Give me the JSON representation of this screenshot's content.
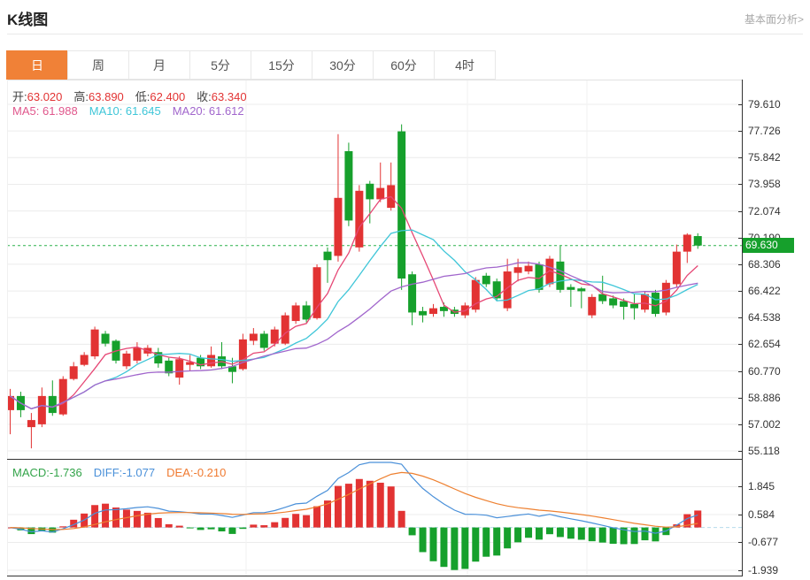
{
  "header": {
    "title": "K线图",
    "link": "基本面分析>"
  },
  "tabs": [
    {
      "label": "日",
      "name": "tab-day",
      "active": true
    },
    {
      "label": "周",
      "name": "tab-week",
      "active": false
    },
    {
      "label": "月",
      "name": "tab-month",
      "active": false
    },
    {
      "label": "5分",
      "name": "tab-5min",
      "active": false
    },
    {
      "label": "15分",
      "name": "tab-15min",
      "active": false
    },
    {
      "label": "30分",
      "name": "tab-30min",
      "active": false
    },
    {
      "label": "60分",
      "name": "tab-60min",
      "active": false
    },
    {
      "label": "4时",
      "name": "tab-4hour",
      "active": false
    }
  ],
  "ohlc_bar": {
    "items": [
      {
        "name": "ohlc-open",
        "label": "开:",
        "value": "63.020"
      },
      {
        "name": "ohlc-high",
        "label": "高:",
        "value": "63.890"
      },
      {
        "name": "ohlc-low",
        "label": "低:",
        "value": "62.400"
      },
      {
        "name": "ohlc-close",
        "label": "收:",
        "value": "63.340"
      }
    ]
  },
  "ma_bar": {
    "items": [
      {
        "name": "ma5-value",
        "label": "MA5: ",
        "value": "61.988",
        "color": "#e0578c"
      },
      {
        "name": "ma10-value",
        "label": "MA10: ",
        "value": "61.645",
        "color": "#3fc6d8"
      },
      {
        "name": "ma20-value",
        "label": "MA20: ",
        "value": "61.612",
        "color": "#a166cc"
      }
    ]
  },
  "macd_bar": {
    "items": [
      {
        "name": "macd-value",
        "label": "MACD:",
        "value": "-1.736",
        "color": "#33a44a"
      },
      {
        "name": "diff-value",
        "label": "DIFF:",
        "value": "-1.077",
        "color": "#4a90d9"
      },
      {
        "name": "dea-value",
        "label": "DEA:",
        "value": "-0.210",
        "color": "#f07a30"
      }
    ]
  },
  "price_badge": {
    "value": "69.630",
    "price": 69.63
  },
  "colors": {
    "up": "#e23333",
    "down": "#16a02c",
    "accent_tab": "#f08137",
    "ma5": "#e64775",
    "ma10": "#3fc6d8",
    "ma20": "#a166cc",
    "diff_line": "#4a90d9",
    "dea_line": "#ee8030",
    "price_line": "#2bb24c",
    "badge_bg": "#16a02c",
    "grid": "#ececec"
  },
  "chart_data": {
    "type": "candlestick",
    "title": "K线图 (daily K-line with MA5/MA10/MA20 overlays and MACD sub-chart)",
    "legend": [
      "MA5",
      "MA10",
      "MA20",
      "MACD",
      "DIFF",
      "DEA"
    ],
    "price_axis": {
      "labels": [
        "79.610",
        "77.726",
        "75.842",
        "73.958",
        "72.074",
        "70.190",
        "68.306",
        "66.422",
        "64.538",
        "62.654",
        "60.770",
        "58.886",
        "57.002",
        "55.118"
      ],
      "min": 55.118,
      "max": 79.61,
      "position": "right",
      "grid": true
    },
    "macd_axis": {
      "labels": [
        "1.845",
        "0.584",
        "-0.677",
        "-1.939"
      ],
      "min": -1.939,
      "max": 1.845,
      "position": "right",
      "grid": true
    },
    "latest_price": 69.63,
    "latest_price_line": "green-dashed",
    "candles_ohlc": [
      [
        58.0,
        59.5,
        56.3,
        59.0
      ],
      [
        59.0,
        59.3,
        57.5,
        58.0
      ],
      [
        56.8,
        57.8,
        55.3,
        57.3
      ],
      [
        57.0,
        59.6,
        56.8,
        59.0
      ],
      [
        59.0,
        60.1,
        57.6,
        57.8
      ],
      [
        57.7,
        60.4,
        57.6,
        60.2
      ],
      [
        60.2,
        61.4,
        60.1,
        61.1
      ],
      [
        61.2,
        62.1,
        61.1,
        61.9
      ],
      [
        61.8,
        63.9,
        61.6,
        63.7
      ],
      [
        63.4,
        63.6,
        62.5,
        62.7
      ],
      [
        62.9,
        63.0,
        61.3,
        61.5
      ],
      [
        61.1,
        62.2,
        60.9,
        62.0
      ],
      [
        61.5,
        62.8,
        61.3,
        62.4
      ],
      [
        62.0,
        62.6,
        61.8,
        62.4
      ],
      [
        62.1,
        62.4,
        61.0,
        61.3
      ],
      [
        61.5,
        61.7,
        60.4,
        60.6
      ],
      [
        60.3,
        61.8,
        59.8,
        61.6
      ],
      [
        61.2,
        61.9,
        60.8,
        61.4
      ],
      [
        61.7,
        61.9,
        60.9,
        61.1
      ],
      [
        61.1,
        62.5,
        61.0,
        61.9
      ],
      [
        61.8,
        62.8,
        60.9,
        61.1
      ],
      [
        61.1,
        61.7,
        59.9,
        60.7
      ],
      [
        60.9,
        63.4,
        60.8,
        63.0
      ],
      [
        62.9,
        63.8,
        62.6,
        63.4
      ],
      [
        63.4,
        63.6,
        62.2,
        62.4
      ],
      [
        62.7,
        63.9,
        62.5,
        63.7
      ],
      [
        62.7,
        64.9,
        62.6,
        64.7
      ],
      [
        64.3,
        65.6,
        64.1,
        65.4
      ],
      [
        65.4,
        65.7,
        64.2,
        64.4
      ],
      [
        64.5,
        68.3,
        64.4,
        68.1
      ],
      [
        69.2,
        69.5,
        67.0,
        68.6
      ],
      [
        68.9,
        77.5,
        68.5,
        73.0
      ],
      [
        76.3,
        76.9,
        71.0,
        71.4
      ],
      [
        69.5,
        73.9,
        69.2,
        73.5
      ],
      [
        74.0,
        74.2,
        71.2,
        72.9
      ],
      [
        72.9,
        75.5,
        72.7,
        73.7
      ],
      [
        72.3,
        75.5,
        72.1,
        73.9
      ],
      [
        77.7,
        78.2,
        66.5,
        67.3
      ],
      [
        67.6,
        67.8,
        64.0,
        64.9
      ],
      [
        65.0,
        65.3,
        64.2,
        64.7
      ],
      [
        64.8,
        65.5,
        64.6,
        65.2
      ],
      [
        65.3,
        65.6,
        64.6,
        65.0
      ],
      [
        65.1,
        65.3,
        64.6,
        64.8
      ],
      [
        64.7,
        65.6,
        64.5,
        65.4
      ],
      [
        65.1,
        67.4,
        64.9,
        67.2
      ],
      [
        67.5,
        67.7,
        66.7,
        66.9
      ],
      [
        67.1,
        67.3,
        65.7,
        65.9
      ],
      [
        65.2,
        68.7,
        65.0,
        67.8
      ],
      [
        67.7,
        68.7,
        67.1,
        68.1
      ],
      [
        67.8,
        68.5,
        67.6,
        68.2
      ],
      [
        68.3,
        68.5,
        66.3,
        66.5
      ],
      [
        66.9,
        68.9,
        66.7,
        68.7
      ],
      [
        68.5,
        69.6,
        66.3,
        66.5
      ],
      [
        66.7,
        66.9,
        65.3,
        66.5
      ],
      [
        66.6,
        66.7,
        65.2,
        66.4
      ],
      [
        64.7,
        66.2,
        64.5,
        66.0
      ],
      [
        66.2,
        67.5,
        65.5,
        65.7
      ],
      [
        65.9,
        66.1,
        65.2,
        65.4
      ],
      [
        65.7,
        65.9,
        64.4,
        65.3
      ],
      [
        65.5,
        66.2,
        64.4,
        65.2
      ],
      [
        65.1,
        66.4,
        64.9,
        66.2
      ],
      [
        66.3,
        66.5,
        64.6,
        64.8
      ],
      [
        64.9,
        67.2,
        64.7,
        67.0
      ],
      [
        66.9,
        69.7,
        66.7,
        69.2
      ],
      [
        69.2,
        70.5,
        68.4,
        70.4
      ],
      [
        70.3,
        70.5,
        69.4,
        69.63
      ]
    ],
    "candle_color_convention": "red-up-green-down",
    "sub_chart": "MACD(12,26,9), bar = 2*(DIFF-DEA), red positive / green negative"
  }
}
